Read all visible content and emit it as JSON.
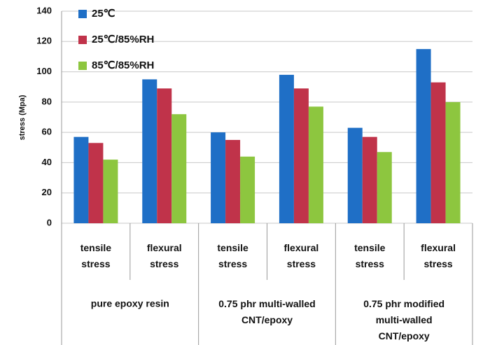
{
  "chart_data": {
    "type": "bar",
    "y_label": "stress (Mpa)",
    "categories": [
      "tensile\nstress",
      "flexural\nstress",
      "tensile\nstress",
      "flexural\nstress",
      "tensile\nstress",
      "flexural\nstress"
    ],
    "groups": [
      "pure epoxy resin",
      "0.75 phr multi-walled\nCNT/epoxy",
      "0.75 phr modified\nmulti-walled\nCNT/epoxy"
    ],
    "series": [
      {
        "name": "25℃",
        "color": "#1f6fc6",
        "values": [
          57,
          95,
          60,
          98,
          63,
          115
        ]
      },
      {
        "name": "25℃/85%RH",
        "color": "#c0334a",
        "values": [
          53,
          89,
          55,
          89,
          57,
          93
        ]
      },
      {
        "name": "85℃/85%RH",
        "color": "#8dc63f",
        "values": [
          42,
          72,
          44,
          77,
          47,
          80
        ]
      }
    ],
    "ylim": [
      0,
      140
    ],
    "yticks": [
      0,
      20,
      40,
      60,
      80,
      100,
      120,
      140
    ],
    "grid": true,
    "legend": "top-left"
  }
}
